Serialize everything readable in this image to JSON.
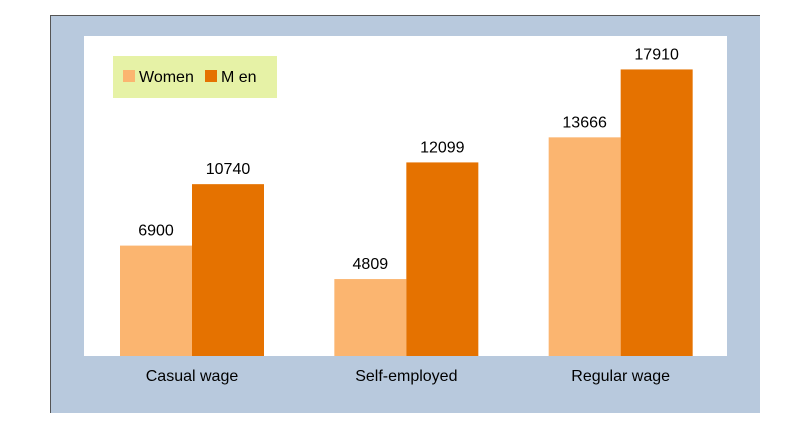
{
  "chart_data": {
    "type": "bar",
    "categories": [
      "Casual wage",
      "Self-employed",
      "Regular wage"
    ],
    "series": [
      {
        "name": "Women",
        "values": [
          6900,
          4809,
          13666
        ],
        "color": "#fbb570"
      },
      {
        "name": "M en",
        "values": [
          10740,
          12099,
          17910
        ],
        "color": "#e57200"
      }
    ],
    "ylim": [
      0,
      20000
    ],
    "grid": false,
    "legend_position": "top-left",
    "legend_background": "#e6f2a6",
    "plot_background": "#ffffff",
    "frame_background": "#b8c9dd"
  }
}
